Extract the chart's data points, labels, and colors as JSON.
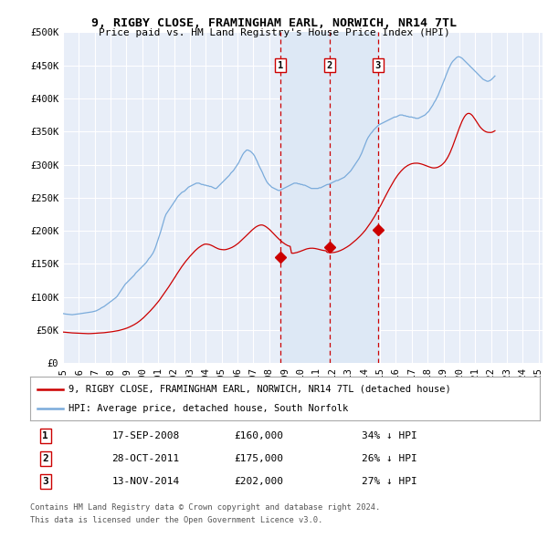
{
  "title": "9, RIGBY CLOSE, FRAMINGHAM EARL, NORWICH, NR14 7TL",
  "subtitle": "Price paid vs. HM Land Registry's House Price Index (HPI)",
  "ylim": [
    0,
    500000
  ],
  "yticks": [
    0,
    50000,
    100000,
    150000,
    200000,
    250000,
    300000,
    350000,
    400000,
    450000,
    500000
  ],
  "ytick_labels": [
    "£0",
    "£50K",
    "£100K",
    "£150K",
    "£200K",
    "£250K",
    "£300K",
    "£350K",
    "£400K",
    "£450K",
    "£500K"
  ],
  "background_color": "#e8eef8",
  "legend1": "9, RIGBY CLOSE, FRAMINGHAM EARL, NORWICH, NR14 7TL (detached house)",
  "legend2": "HPI: Average price, detached house, South Norfolk",
  "red_line_color": "#cc0000",
  "blue_line_color": "#7aabdb",
  "vline_color": "#cc0000",
  "shade_color": "#dde8f5",
  "transactions": [
    {
      "date": "2008-09-17",
      "price": 160000,
      "label": "1"
    },
    {
      "date": "2011-10-28",
      "price": 175000,
      "label": "2"
    },
    {
      "date": "2014-11-13",
      "price": 202000,
      "label": "3"
    }
  ],
  "table_rows": [
    [
      "1",
      "17-SEP-2008",
      "£160,000",
      "34% ↓ HPI"
    ],
    [
      "2",
      "28-OCT-2011",
      "£175,000",
      "26% ↓ HPI"
    ],
    [
      "3",
      "13-NOV-2014",
      "£202,000",
      "27% ↓ HPI"
    ]
  ],
  "footer1": "Contains HM Land Registry data © Crown copyright and database right 2024.",
  "footer2": "This data is licensed under the Open Government Licence v3.0.",
  "hpi_monthly": [
    75000,
    74500,
    74200,
    74000,
    73800,
    73500,
    73300,
    73200,
    73500,
    73800,
    74000,
    74200,
    74500,
    74800,
    75200,
    75500,
    75800,
    76000,
    76200,
    76500,
    76800,
    77000,
    77500,
    78000,
    78500,
    79000,
    80000,
    81000,
    82000,
    83500,
    84500,
    85500,
    87000,
    88500,
    90000,
    91500,
    93000,
    94500,
    96000,
    97500,
    99000,
    101000,
    104000,
    107000,
    110000,
    113000,
    116000,
    119000,
    121000,
    123000,
    125000,
    127000,
    129000,
    131000,
    133000,
    136000,
    138000,
    140000,
    142000,
    144000,
    146000,
    148000,
    150000,
    152000,
    155000,
    158000,
    160000,
    163000,
    166000,
    170000,
    175000,
    181000,
    187000,
    193000,
    199000,
    206000,
    213000,
    220000,
    225000,
    228000,
    231000,
    234000,
    237000,
    240000,
    243000,
    246000,
    249000,
    252000,
    254000,
    256000,
    258000,
    259000,
    260000,
    262000,
    264000,
    266000,
    267000,
    268000,
    269000,
    270000,
    271000,
    272000,
    272000,
    272000,
    271000,
    270000,
    270000,
    269000,
    269000,
    268000,
    268000,
    267000,
    267000,
    266000,
    265000,
    264000,
    264000,
    266000,
    268000,
    270000,
    272000,
    274000,
    276000,
    278000,
    280000,
    282000,
    284000,
    287000,
    289000,
    291000,
    294000,
    297000,
    300000,
    303000,
    307000,
    311000,
    315000,
    318000,
    320000,
    322000,
    322000,
    321000,
    320000,
    318000,
    316000,
    313000,
    309000,
    305000,
    300000,
    296000,
    292000,
    288000,
    283000,
    279000,
    275000,
    272000,
    270000,
    268000,
    266000,
    265000,
    264000,
    263000,
    262000,
    261000,
    261000,
    262000,
    263000,
    264000,
    265000,
    266000,
    267000,
    268000,
    269000,
    270000,
    271000,
    272000,
    272000,
    272000,
    271000,
    271000,
    270000,
    270000,
    269000,
    269000,
    268000,
    267000,
    266000,
    265000,
    264000,
    264000,
    264000,
    264000,
    264000,
    264000,
    265000,
    265000,
    266000,
    267000,
    268000,
    269000,
    270000,
    270000,
    271000,
    272000,
    273000,
    274000,
    275000,
    276000,
    276000,
    277000,
    278000,
    279000,
    280000,
    281000,
    283000,
    285000,
    287000,
    289000,
    291000,
    294000,
    297000,
    300000,
    303000,
    306000,
    309000,
    313000,
    317000,
    322000,
    327000,
    332000,
    337000,
    341000,
    344000,
    347000,
    349000,
    352000,
    354000,
    356000,
    358000,
    360000,
    361000,
    362000,
    363000,
    364000,
    365000,
    366000,
    367000,
    368000,
    369000,
    370000,
    371000,
    372000,
    372000,
    373000,
    374000,
    375000,
    375000,
    375000,
    374000,
    374000,
    373000,
    373000,
    372000,
    372000,
    372000,
    371000,
    371000,
    370000,
    370000,
    370000,
    371000,
    372000,
    373000,
    374000,
    375000,
    377000,
    379000,
    381000,
    384000,
    387000,
    390000,
    394000,
    397000,
    401000,
    405000,
    410000,
    415000,
    420000,
    425000,
    430000,
    435000,
    440000,
    445000,
    449000,
    453000,
    456000,
    458000,
    460000,
    462000,
    463000,
    463000,
    462000,
    461000,
    459000,
    457000,
    455000,
    453000,
    451000,
    449000,
    447000,
    445000,
    443000,
    441000,
    439000,
    437000,
    435000,
    433000,
    431000,
    429000,
    428000,
    427000,
    426000,
    426000,
    427000,
    428000,
    430000,
    432000,
    434000
  ],
  "prop_monthly": [
    47000,
    46800,
    46600,
    46400,
    46200,
    46000,
    45800,
    45700,
    45600,
    45500,
    45400,
    45300,
    45200,
    45100,
    45000,
    44900,
    44800,
    44700,
    44600,
    44600,
    44600,
    44700,
    44800,
    45000,
    45100,
    45200,
    45400,
    45500,
    45600,
    45700,
    45800,
    46000,
    46200,
    46500,
    46800,
    47000,
    47200,
    47500,
    47800,
    48000,
    48300,
    48700,
    49200,
    49700,
    50200,
    50800,
    51400,
    52000,
    52700,
    53500,
    54300,
    55200,
    56200,
    57200,
    58300,
    59500,
    60800,
    62200,
    63700,
    65300,
    67000,
    68800,
    70700,
    72600,
    74600,
    76600,
    78800,
    81000,
    83200,
    85500,
    87900,
    90300,
    92800,
    95400,
    98000,
    100800,
    103500,
    106300,
    109200,
    112200,
    115300,
    118400,
    121500,
    124600,
    127700,
    130800,
    133900,
    137000,
    140100,
    143000,
    146000,
    148800,
    151500,
    154100,
    156600,
    159000,
    161300,
    163500,
    165700,
    167800,
    169800,
    171700,
    173400,
    175000,
    176400,
    177700,
    178800,
    179700,
    179900,
    179800,
    179500,
    179000,
    178300,
    177400,
    176400,
    175200,
    174200,
    173300,
    172500,
    172000,
    171700,
    171500,
    171400,
    171600,
    172000,
    172600,
    173300,
    174100,
    175000,
    176100,
    177300,
    178700,
    180200,
    181800,
    183500,
    185300,
    187200,
    189200,
    191100,
    193100,
    195100,
    197100,
    199000,
    200900,
    202700,
    204300,
    205700,
    206900,
    207800,
    208500,
    208800,
    208700,
    208000,
    207000,
    205700,
    204200,
    202500,
    200600,
    198600,
    196600,
    194500,
    192400,
    190300,
    188300,
    186400,
    184600,
    182900,
    181400,
    180000,
    178800,
    177800,
    177000,
    176500,
    166200,
    166100,
    166300,
    166700,
    167200,
    167800,
    168500,
    169300,
    170100,
    170900,
    171600,
    172300,
    172900,
    173300,
    173600,
    173700,
    173700,
    173500,
    173200,
    172800,
    172300,
    171800,
    171300,
    170800,
    170400,
    170100,
    169800,
    167500,
    167200,
    167000,
    167000,
    167100,
    167300,
    167600,
    168100,
    168700,
    169400,
    170200,
    171100,
    172100,
    173200,
    174400,
    175600,
    176900,
    178300,
    179800,
    181400,
    183000,
    184700,
    186500,
    188400,
    190300,
    192300,
    194400,
    196600,
    198900,
    201400,
    204000,
    206700,
    209600,
    212600,
    215700,
    218900,
    222200,
    225700,
    229200,
    232800,
    236500,
    240300,
    244100,
    247900,
    251800,
    255600,
    259400,
    263200,
    266800,
    270400,
    273800,
    277100,
    280200,
    283100,
    285700,
    288200,
    290400,
    292500,
    294400,
    296100,
    297500,
    298800,
    299800,
    300700,
    301400,
    301800,
    302100,
    302200,
    302200,
    302000,
    301600,
    301100,
    300500,
    299800,
    299000,
    298200,
    297400,
    296700,
    296100,
    295500,
    295100,
    295000,
    295200,
    295600,
    296300,
    297300,
    298500,
    300100,
    302000,
    304200,
    306900,
    310100,
    313800,
    318000,
    322700,
    327800,
    333200,
    338800,
    344400,
    350000,
    355400,
    360500,
    365200,
    369300,
    372700,
    375300,
    376900,
    377500,
    377100,
    375800,
    373800,
    371100,
    368100,
    364900,
    361800,
    359000,
    356400,
    354200,
    352400,
    350900,
    349800,
    349100,
    348700,
    348600,
    348600,
    349100,
    350000,
    351200,
    353000,
    355000,
    357000,
    359000
  ],
  "start_year": 1995,
  "start_month": 1,
  "num_months": 360
}
